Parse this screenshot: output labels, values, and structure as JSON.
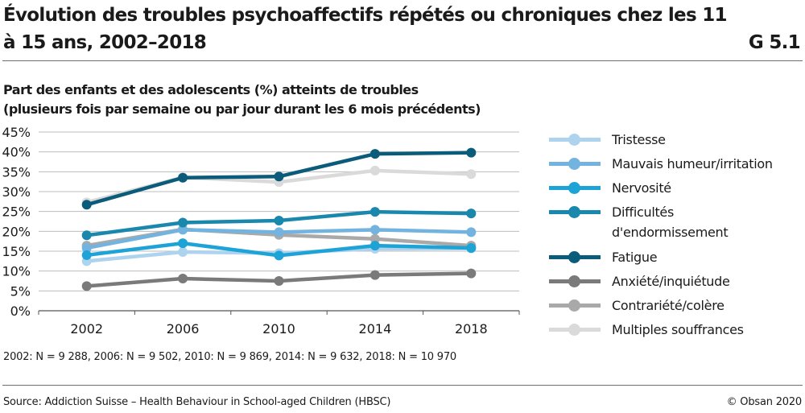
{
  "header": {
    "title": "Évolution des troubles psychoaffectifs répétés ou chroniques chez les 11 à 15 ans, 2002–2018",
    "code": "G 5.1",
    "subtitle_line1": "Part des enfants et des adolescents (%) atteints de troubles",
    "subtitle_line2": "(plusieurs fois par semaine ou par jour durant les 6 mois précédents)"
  },
  "footer": {
    "sample_sizes": "2002: N = 9 288, 2006: N = 9 502, 2010: N = 9 869, 2014: N = 9 632, 2018: N = 10 970",
    "source": "Source: Addiction Suisse – Health Behaviour in School-aged Children (HBSC)",
    "copyright": "© Obsan 2020"
  },
  "chart_data": {
    "type": "line",
    "categories": [
      "2002",
      "2006",
      "2010",
      "2014",
      "2018"
    ],
    "ylim": [
      0,
      45
    ],
    "yticks": [
      0,
      5,
      10,
      15,
      20,
      25,
      30,
      35,
      40,
      45
    ],
    "ytick_labels": [
      "0%",
      "5%",
      "10%",
      "15%",
      "20%",
      "25%",
      "30%",
      "35%",
      "40%",
      "45%"
    ],
    "grid": true,
    "legend_position": "right",
    "series": [
      {
        "name": "Tristesse",
        "color": "#aed3ee",
        "values": [
          12.5,
          14.8,
          14.5,
          15.6,
          15.7
        ]
      },
      {
        "name": "Mauvais humeur/irritation",
        "color": "#72b4df",
        "values": [
          15.8,
          20.4,
          19.8,
          20.4,
          19.8
        ]
      },
      {
        "name": "Nervosité",
        "color": "#1ea3d6",
        "values": [
          14.0,
          17.0,
          13.9,
          16.4,
          15.8
        ]
      },
      {
        "name": "Difficultés\nd'endormissement",
        "color": "#1a87ad",
        "values": [
          19.0,
          22.2,
          22.7,
          24.9,
          24.5
        ]
      },
      {
        "name": "Fatigue",
        "color": "#0b5c7a",
        "values": [
          26.7,
          33.5,
          33.8,
          39.5,
          39.8
        ]
      },
      {
        "name": "Anxiété/inquiétude",
        "color": "#7a7a7a",
        "values": [
          6.2,
          8.1,
          7.5,
          9.0,
          9.4
        ]
      },
      {
        "name": "Contrariété/colère",
        "color": "#a9a9a9",
        "values": [
          16.4,
          20.5,
          19.1,
          18.1,
          16.4
        ]
      },
      {
        "name": "Multiples souffrances",
        "color": "#dadada",
        "values": [
          27.3,
          33.6,
          32.4,
          35.3,
          34.4
        ]
      }
    ]
  }
}
